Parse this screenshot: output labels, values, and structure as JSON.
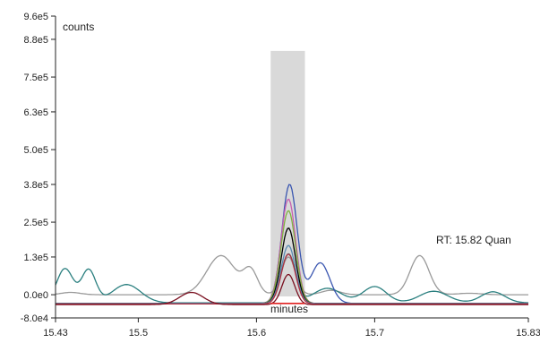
{
  "chart_data": {
    "type": "line",
    "ylabel": "counts",
    "xlabel": "minutes",
    "annotation": "RT: 15.82 Quan",
    "xlim": [
      15.43,
      15.83
    ],
    "ylim": [
      -80000.0,
      960000.0
    ],
    "x_ticks": [
      15.43,
      15.5,
      15.6,
      15.7,
      15.83
    ],
    "x_tick_labels": [
      "15.43",
      "15.5",
      "15.6",
      "15.7",
      "15.83"
    ],
    "y_ticks": [
      -80000,
      0,
      130000,
      250000,
      380000,
      500000,
      630000,
      750000,
      880000,
      960000
    ],
    "y_tick_labels": [
      "-8.0e4",
      "0.0e0",
      "1.3e5",
      "2.5e5",
      "3.8e5",
      "5.0e5",
      "6.3e5",
      "7.5e5",
      "8.8e5",
      "9.6e5"
    ],
    "highlight_band": {
      "x_start": 15.612,
      "x_end": 15.641,
      "top": 840000,
      "color": "#d9d9d9"
    },
    "integration_baseline": {
      "x_start": 15.612,
      "x_end": 15.641,
      "y": -30000,
      "color": "#e02020"
    },
    "series": [
      {
        "color": "#9a9a9a",
        "peak_x": 15.627,
        "peak": 130000,
        "sigma": 0.006,
        "base": 0,
        "bumps": [
          [
            15.443,
            8000,
            0.008
          ],
          [
            15.57,
            135000,
            0.012
          ],
          [
            15.595,
            80000,
            0.006
          ],
          [
            15.663,
            15000,
            0.008
          ],
          [
            15.738,
            135000,
            0.008
          ],
          [
            15.78,
            5000,
            0.01
          ]
        ]
      },
      {
        "color": "#2a7f7f",
        "peak_x": 15.627,
        "peak": 140000,
        "sigma": 0.006,
        "base": -28000,
        "bumps": [
          [
            15.438,
            90000,
            0.007
          ],
          [
            15.458,
            85000,
            0.006
          ],
          [
            15.49,
            35000,
            0.012
          ],
          [
            15.66,
            22000,
            0.012
          ],
          [
            15.7,
            28000,
            0.01
          ],
          [
            15.75,
            12000,
            0.012
          ],
          [
            15.8,
            10000,
            0.01
          ]
        ]
      },
      {
        "color": "#3a56b0",
        "peak_x": 15.628,
        "peak": 380000,
        "sigma": 0.0065,
        "base": -30000,
        "bumps": [
          [
            15.654,
            110000,
            0.008
          ]
        ]
      },
      {
        "color": "#c860b0",
        "peak_x": 15.627,
        "peak": 330000,
        "sigma": 0.0062,
        "base": -30000,
        "bumps": []
      },
      {
        "color": "#80b040",
        "peak_x": 15.627,
        "peak": 290000,
        "sigma": 0.0062,
        "base": -30000,
        "bumps": []
      },
      {
        "color": "#000000",
        "peak_x": 15.627,
        "peak": 230000,
        "sigma": 0.006,
        "base": -30000,
        "bumps": []
      },
      {
        "color": "#5a8ab0",
        "peak_x": 15.627,
        "peak": 170000,
        "sigma": 0.006,
        "base": -30000,
        "bumps": []
      },
      {
        "color": "#b03040",
        "peak_x": 15.627,
        "peak": 140000,
        "sigma": 0.006,
        "base": -32000,
        "bumps": []
      },
      {
        "color": "#7a1020",
        "peak_x": 15.627,
        "peak": 70000,
        "sigma": 0.0055,
        "base": -34000,
        "bumps": [
          [
            15.545,
            8000,
            0.01
          ]
        ]
      }
    ]
  }
}
